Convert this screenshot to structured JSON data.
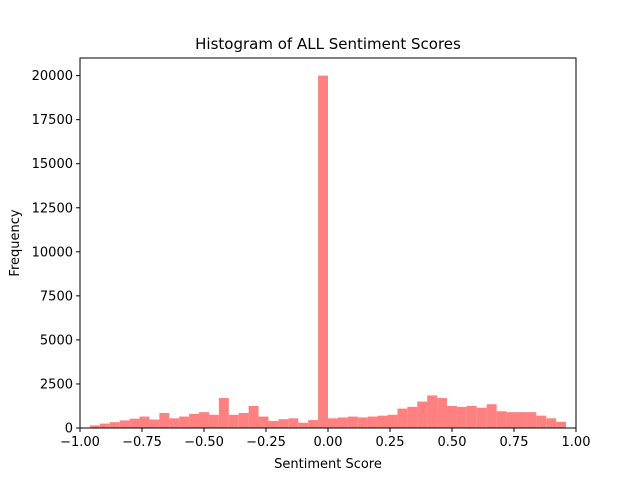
{
  "chart_data": {
    "type": "bar",
    "title": "Histogram of ALL Sentiment Scores",
    "xlabel": "Sentiment Score",
    "ylabel": "Frequency",
    "xlim": [
      -1.0,
      1.0
    ],
    "ylim": [
      0,
      21000
    ],
    "bar_color": "#ff8080",
    "grid": false,
    "legend": "none",
    "bin_width": 0.04,
    "bin_starts": [
      -0.96,
      -0.92,
      -0.88,
      -0.84,
      -0.8,
      -0.76,
      -0.72,
      -0.68,
      -0.64,
      -0.6,
      -0.56,
      -0.52,
      -0.48,
      -0.44,
      -0.4,
      -0.36,
      -0.32,
      -0.28,
      -0.24,
      -0.2,
      -0.16,
      -0.12,
      -0.08,
      -0.04,
      0.0,
      0.04,
      0.08,
      0.12,
      0.16,
      0.2,
      0.24,
      0.28,
      0.32,
      0.36,
      0.4,
      0.44,
      0.48,
      0.52,
      0.56,
      0.6,
      0.64,
      0.68,
      0.72,
      0.76,
      0.8,
      0.84,
      0.88,
      0.92
    ],
    "values": [
      150,
      250,
      330,
      430,
      530,
      650,
      480,
      850,
      550,
      650,
      800,
      900,
      750,
      1700,
      750,
      850,
      1250,
      650,
      400,
      500,
      550,
      300,
      450,
      20000,
      550,
      600,
      650,
      600,
      650,
      700,
      750,
      1100,
      1200,
      1500,
      1850,
      1700,
      1250,
      1200,
      1250,
      1150,
      1350,
      950,
      900,
      900,
      900,
      700,
      550,
      350
    ],
    "xticks": [
      "−1.00",
      "−0.75",
      "−0.50",
      "−0.25",
      "0.00",
      "0.25",
      "0.50",
      "0.75",
      "1.00"
    ],
    "xtick_values": [
      -1.0,
      -0.75,
      -0.5,
      -0.25,
      0.0,
      0.25,
      0.5,
      0.75,
      1.0
    ],
    "yticks": [
      "0",
      "2500",
      "5000",
      "7500",
      "10000",
      "12500",
      "15000",
      "17500",
      "20000"
    ],
    "ytick_values": [
      0,
      2500,
      5000,
      7500,
      10000,
      12500,
      15000,
      17500,
      20000
    ]
  }
}
